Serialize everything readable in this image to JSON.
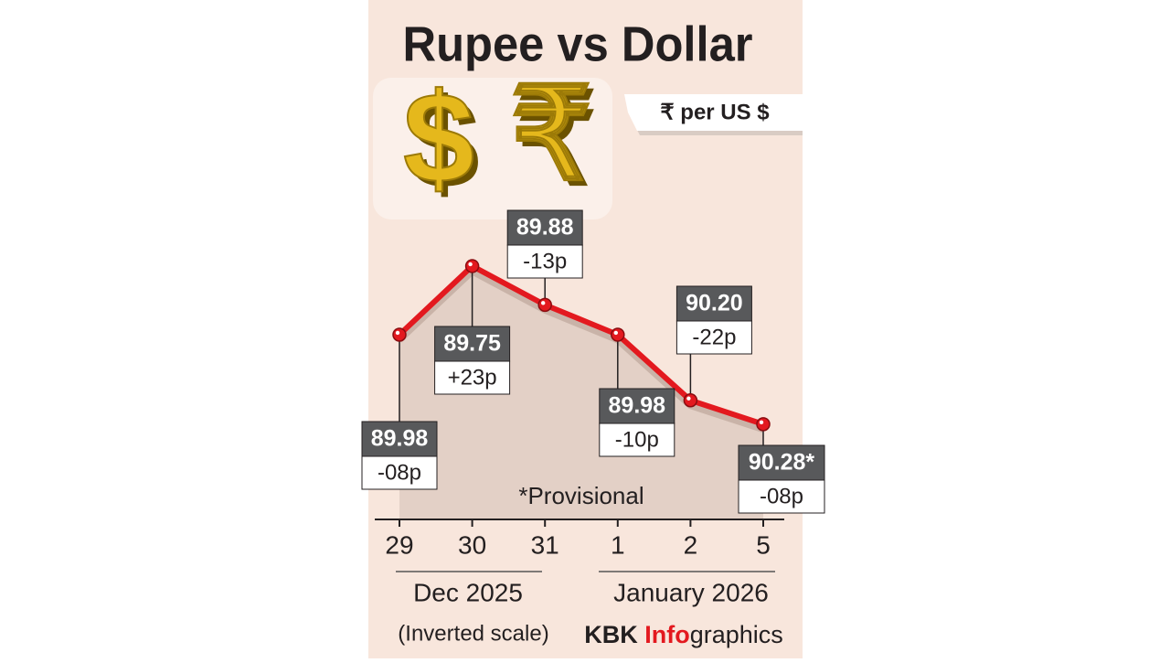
{
  "chart_data": {
    "type": "line",
    "title": "Rupee vs Dollar",
    "icons": [
      "$",
      "₹"
    ],
    "unit_label": "₹ per US $",
    "categories": [
      "29",
      "30",
      "31",
      "1",
      "2",
      "5"
    ],
    "values": [
      89.98,
      89.75,
      89.88,
      89.98,
      90.2,
      90.28
    ],
    "value_labels": [
      "89.98",
      "89.75",
      "89.88",
      "89.98",
      "90.20",
      "90.28*"
    ],
    "changes": [
      "-08p",
      "+23p",
      "-13p",
      "-10p",
      "-22p",
      "-08p"
    ],
    "note": "*Provisional",
    "months": [
      "Dec 2025",
      "January 2026"
    ],
    "scale_note": "(Inverted scale)",
    "credit": {
      "prefix": "KBK",
      "highlight": "Info",
      "suffix": "graphics"
    },
    "ylim": [
      89.6,
      90.4
    ],
    "inverted": true,
    "color": "#e3191f"
  }
}
